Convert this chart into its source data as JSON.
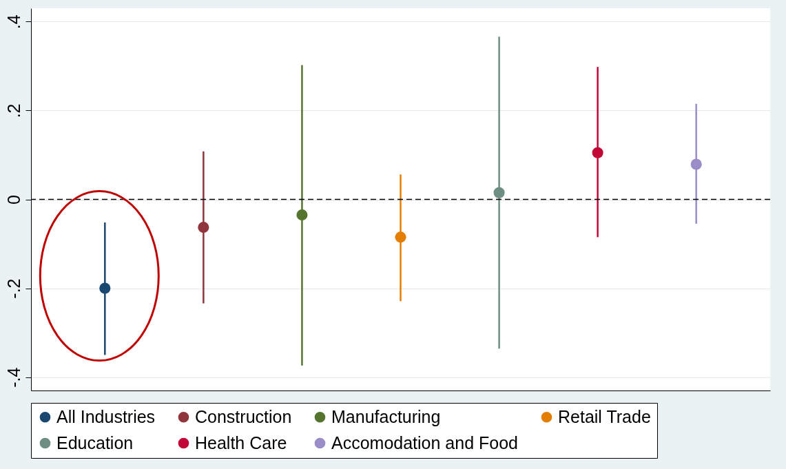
{
  "chart_data": {
    "type": "scatter",
    "categories": [
      null,
      null,
      null,
      null,
      null,
      null,
      null
    ],
    "ylim": [
      -0.43,
      0.43
    ],
    "yticks": [
      {
        "value": -0.4,
        "label": "-.4"
      },
      {
        "value": -0.2,
        "label": "-.2"
      },
      {
        "value": 0,
        "label": "0"
      },
      {
        "value": 0.2,
        "label": ".2"
      },
      {
        "value": 0.4,
        "label": ".4"
      }
    ],
    "grid": "y",
    "legend": "bottom",
    "tick_labels": "y",
    "marker": "circle",
    "ref_lines": [
      {
        "axis": "y",
        "value": 0,
        "color": "#000000",
        "line_style": "dashed"
      }
    ],
    "series": [
      {
        "name": "All Industries",
        "color": "#1a476f",
        "values": [
          -0.2,
          null,
          null,
          null,
          null,
          null,
          null
        ],
        "errors": [
          [
            -0.35,
            -0.052
          ],
          null,
          null,
          null,
          null,
          null,
          null
        ]
      },
      {
        "name": "Construction",
        "color": "#90353b",
        "values": [
          null,
          -0.063,
          null,
          null,
          null,
          null,
          null
        ],
        "errors": [
          null,
          [
            -0.234,
            0.108
          ],
          null,
          null,
          null,
          null,
          null
        ]
      },
      {
        "name": "Manufacturing",
        "color": "#55752f",
        "values": [
          null,
          null,
          -0.035,
          null,
          null,
          null,
          null
        ],
        "errors": [
          null,
          null,
          [
            -0.374,
            0.302
          ],
          null,
          null,
          null,
          null
        ]
      },
      {
        "name": "Retail Trade",
        "color": "#e37e00",
        "values": [
          null,
          null,
          null,
          -0.085,
          null,
          null,
          null
        ],
        "errors": [
          null,
          null,
          null,
          [
            -0.229,
            0.056
          ],
          null,
          null,
          null
        ]
      },
      {
        "name": "Education",
        "color": "#6e8e84",
        "values": [
          null,
          null,
          null,
          null,
          0.015,
          null,
          null
        ],
        "errors": [
          null,
          null,
          null,
          null,
          [
            -0.336,
            0.366
          ],
          null,
          null
        ]
      },
      {
        "name": "Health Care",
        "color": "#c10534",
        "values": [
          null,
          null,
          null,
          null,
          null,
          0.105,
          null
        ],
        "errors": [
          null,
          null,
          null,
          null,
          null,
          [
            -0.085,
            0.298
          ],
          null
        ]
      },
      {
        "name": "Accomodation and Food",
        "color": "#9b8dc8",
        "values": [
          null,
          null,
          null,
          null,
          null,
          null,
          0.079
        ],
        "errors": [
          null,
          null,
          null,
          null,
          null,
          null,
          [
            -0.055,
            0.215
          ]
        ]
      }
    ]
  }
}
